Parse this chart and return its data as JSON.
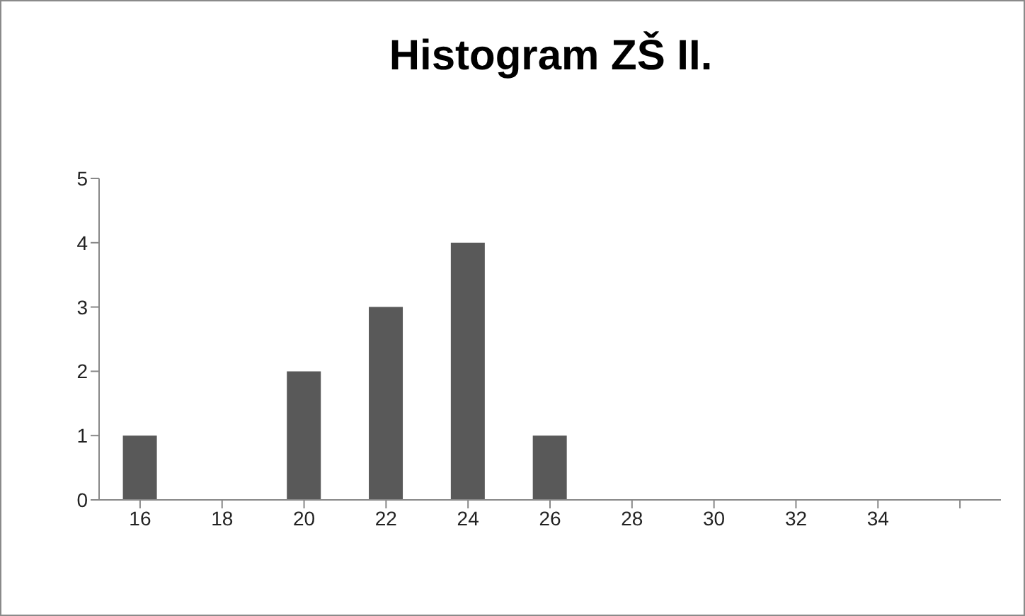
{
  "chart_data": {
    "type": "bar",
    "title": "Histogram ZŠ II.",
    "categories": [
      "16",
      "18",
      "20",
      "22",
      "24",
      "26",
      "28",
      "30",
      "32",
      "34",
      null
    ],
    "values": [
      1,
      0,
      2,
      3,
      4,
      1,
      0,
      0,
      0,
      0,
      0
    ],
    "color": "#595959",
    "ylim": [
      0,
      5
    ],
    "yticks": [
      0,
      1,
      2,
      3,
      4,
      5
    ],
    "grid": false,
    "legend": false
  }
}
